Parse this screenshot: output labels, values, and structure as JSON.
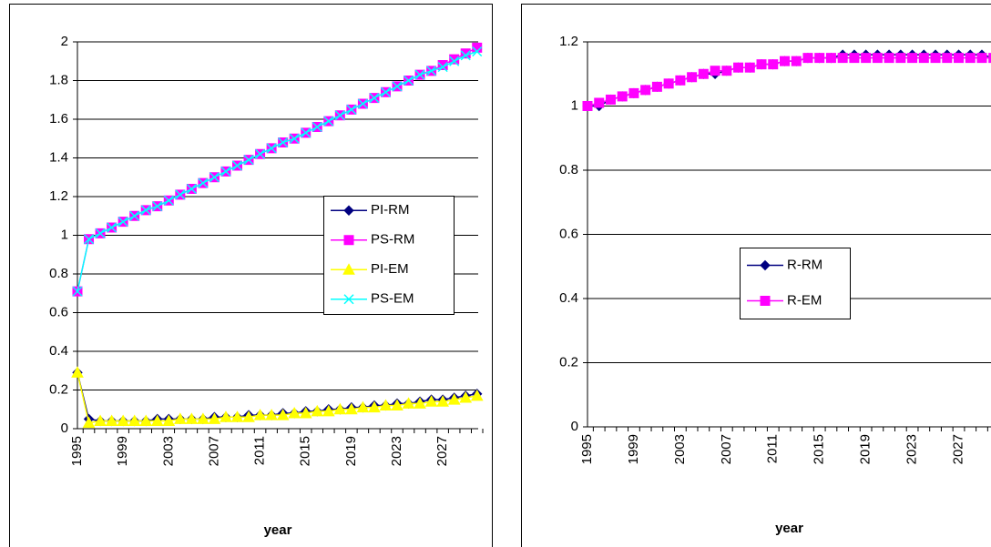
{
  "chart_data": [
    {
      "type": "line",
      "x_label": "year",
      "categories": [
        "1995",
        null,
        null,
        null,
        "1999",
        null,
        null,
        null,
        "2003",
        null,
        null,
        null,
        "2007",
        null,
        null,
        null,
        "2011",
        null,
        null,
        null,
        "2015",
        null,
        null,
        null,
        "2019",
        null,
        null,
        null,
        "2023",
        null,
        null,
        null,
        "2027",
        null,
        null,
        null
      ],
      "ylim": [
        0,
        2
      ],
      "yticks": [
        0,
        0.2,
        0.4,
        0.6,
        0.8,
        1,
        1.2,
        1.4,
        1.6,
        1.8,
        2
      ],
      "grid": true,
      "legend": "right",
      "series": [
        {
          "name": "PI-RM",
          "color": "#000080",
          "marker": "diamond",
          "values": [
            0.29,
            0.05,
            0.04,
            0.04,
            0.04,
            0.04,
            0.04,
            0.05,
            0.05,
            0.05,
            0.05,
            0.05,
            0.06,
            0.06,
            0.06,
            0.07,
            0.07,
            0.07,
            0.08,
            0.08,
            0.09,
            0.09,
            0.1,
            0.1,
            0.11,
            0.11,
            0.12,
            0.12,
            0.13,
            0.13,
            0.14,
            0.15,
            0.15,
            0.16,
            0.17,
            0.18
          ]
        },
        {
          "name": "PS-RM",
          "color": "#ff00ff",
          "marker": "square",
          "values": [
            0.71,
            0.98,
            1.01,
            1.04,
            1.07,
            1.1,
            1.13,
            1.15,
            1.18,
            1.21,
            1.24,
            1.27,
            1.3,
            1.33,
            1.36,
            1.39,
            1.42,
            1.45,
            1.48,
            1.5,
            1.53,
            1.56,
            1.59,
            1.62,
            1.65,
            1.68,
            1.71,
            1.74,
            1.77,
            1.8,
            1.83,
            1.85,
            1.88,
            1.91,
            1.94,
            1.97
          ]
        },
        {
          "name": "PI-EM",
          "color": "#ffff00",
          "marker": "triangle",
          "values": [
            0.29,
            0.03,
            0.04,
            0.04,
            0.04,
            0.04,
            0.04,
            0.04,
            0.04,
            0.05,
            0.05,
            0.05,
            0.05,
            0.06,
            0.06,
            0.06,
            0.07,
            0.07,
            0.07,
            0.08,
            0.08,
            0.09,
            0.09,
            0.1,
            0.1,
            0.11,
            0.11,
            0.12,
            0.12,
            0.13,
            0.13,
            0.14,
            0.14,
            0.15,
            0.16,
            0.17
          ]
        },
        {
          "name": "PS-EM",
          "color": "#00ffff",
          "marker": "x",
          "values": [
            0.71,
            0.98,
            1.01,
            1.04,
            1.07,
            1.1,
            1.13,
            1.15,
            1.18,
            1.21,
            1.24,
            1.27,
            1.3,
            1.33,
            1.36,
            1.39,
            1.42,
            1.45,
            1.48,
            1.5,
            1.53,
            1.56,
            1.59,
            1.62,
            1.65,
            1.68,
            1.71,
            1.74,
            1.77,
            1.8,
            1.83,
            1.85,
            1.87,
            1.9,
            1.93,
            1.95
          ]
        }
      ]
    },
    {
      "type": "line",
      "x_label": "year",
      "categories": [
        "1995",
        null,
        null,
        null,
        "1999",
        null,
        null,
        null,
        "2003",
        null,
        null,
        null,
        "2007",
        null,
        null,
        null,
        "2011",
        null,
        null,
        null,
        "2015",
        null,
        null,
        null,
        "2019",
        null,
        null,
        null,
        "2023",
        null,
        null,
        null,
        "2027",
        null,
        null,
        null
      ],
      "ylim": [
        0,
        1.2
      ],
      "yticks": [
        0,
        0.2,
        0.4,
        0.6,
        0.8,
        1,
        1.2
      ],
      "grid": true,
      "legend": "center",
      "series": [
        {
          "name": "R-RM",
          "color": "#000080",
          "marker": "diamond",
          "values": [
            1.0,
            1.0,
            1.02,
            1.03,
            1.04,
            1.05,
            1.06,
            1.07,
            1.08,
            1.09,
            1.1,
            1.1,
            1.11,
            1.12,
            1.12,
            1.13,
            1.13,
            1.14,
            1.14,
            1.15,
            1.15,
            1.15,
            1.16,
            1.16,
            1.16,
            1.16,
            1.16,
            1.16,
            1.16,
            1.16,
            1.16,
            1.16,
            1.16,
            1.16,
            1.16,
            1.15
          ]
        },
        {
          "name": "R-EM",
          "color": "#ff00ff",
          "marker": "square",
          "values": [
            1.0,
            1.01,
            1.02,
            1.03,
            1.04,
            1.05,
            1.06,
            1.07,
            1.08,
            1.09,
            1.1,
            1.11,
            1.11,
            1.12,
            1.12,
            1.13,
            1.13,
            1.14,
            1.14,
            1.15,
            1.15,
            1.15,
            1.15,
            1.15,
            1.15,
            1.15,
            1.15,
            1.15,
            1.15,
            1.15,
            1.15,
            1.15,
            1.15,
            1.15,
            1.15,
            1.15
          ]
        }
      ]
    }
  ]
}
